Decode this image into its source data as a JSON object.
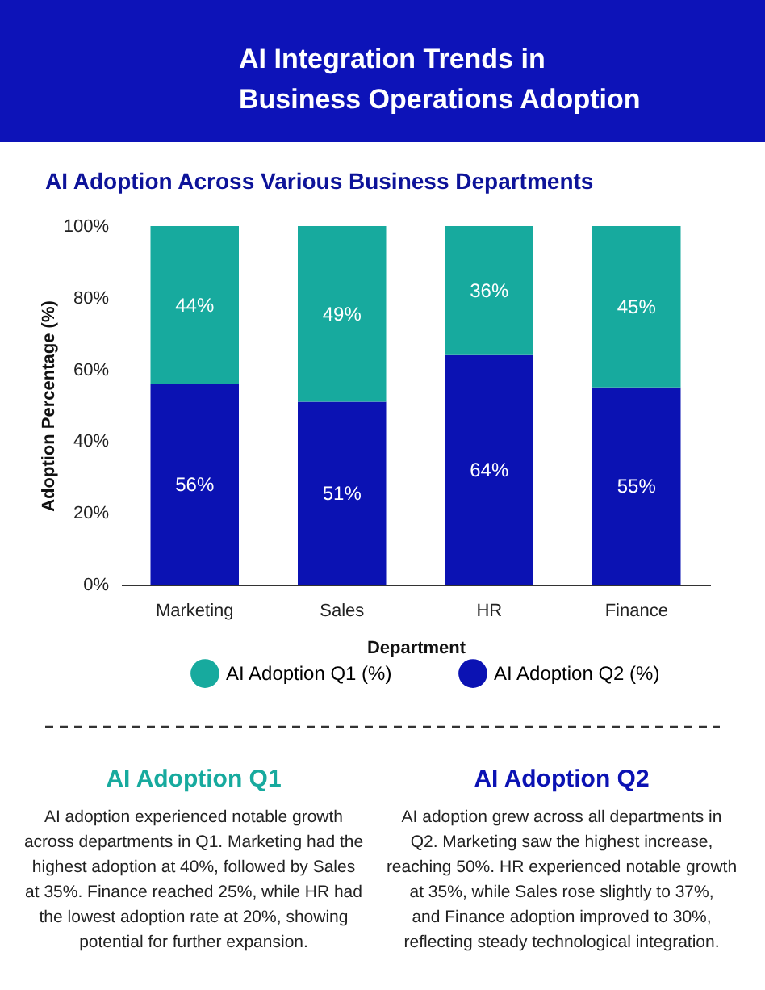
{
  "chart_data": {
    "type": "bar",
    "title": "AI Integration Trends in Business Operations Adoption",
    "subtitle": "AI Adoption Across Various Business Departments",
    "xlabel": "Department",
    "ylabel": "Adoption Percentage (%)",
    "categories": [
      "Marketing",
      "Sales",
      "HR",
      "Finance"
    ],
    "stacked": true,
    "series": [
      {
        "name": "AI Adoption Q2 (%)",
        "color": "#0b12b3",
        "values": [
          56,
          51,
          64,
          55
        ],
        "value_labels": [
          "56%",
          "51%",
          "64%",
          "55%"
        ]
      },
      {
        "name": "AI Adoption Q1 (%)",
        "color": "#17aa9e",
        "values": [
          44,
          49,
          36,
          45
        ],
        "value_labels": [
          "44%",
          "49%",
          "36%",
          "45%"
        ]
      }
    ],
    "ylim": [
      0,
      100
    ],
    "yticks": [
      {
        "value": 0,
        "label": "0%"
      },
      {
        "value": 20,
        "label": "20%"
      },
      {
        "value": 40,
        "label": "40%"
      },
      {
        "value": 60,
        "label": "60%"
      },
      {
        "value": 80,
        "label": "80%"
      },
      {
        "value": 100,
        "label": "100%"
      }
    ],
    "grid": false,
    "legend": "bottom",
    "annotations": [
      "AI Adoption Q1",
      "AI adoption experienced notable growth across departments in Q1. Marketing had the highest adoption at 40%, followed by Sales at 35%. Finance reached 25%, while HR had the lowest adoption rate at 20%, showing potential for further expansion.",
      "AI Adoption Q2",
      "AI adoption grew across all departments in Q2. Marketing saw the highest increase, reaching 50%. HR experienced notable growth at 35%, while Sales rose slightly to 37%, and Finance adoption improved to 30%, reflecting steady technological integration."
    ]
  }
}
